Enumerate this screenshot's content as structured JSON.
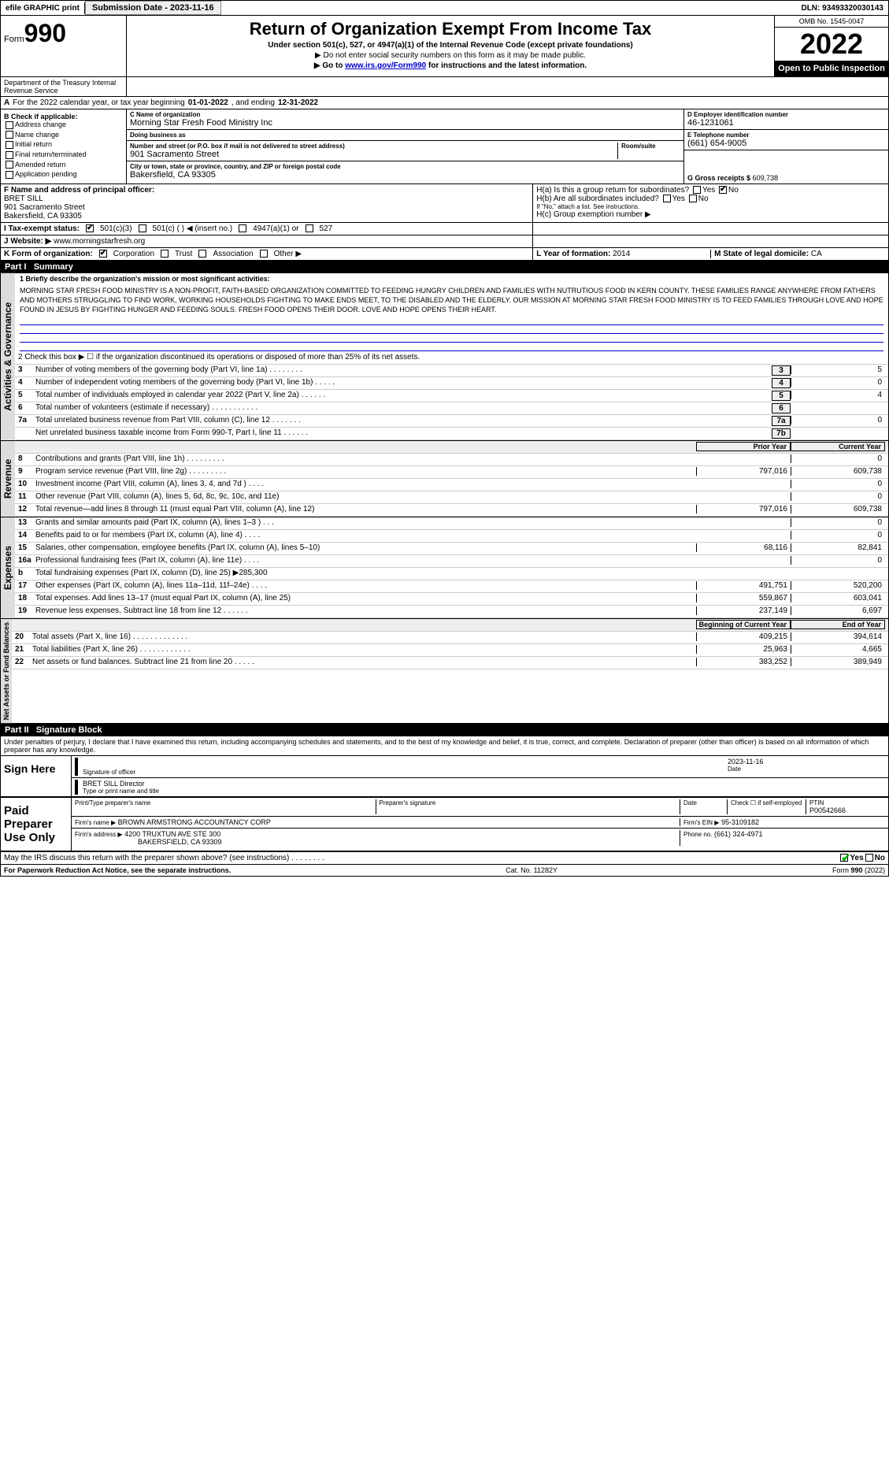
{
  "topbar": {
    "efile": "efile GRAPHIC print",
    "submission_label": "Submission Date - 2023-11-16",
    "dln": "DLN: 93493320030143"
  },
  "header": {
    "form_label": "Form",
    "form_num": "990",
    "title": "Return of Organization Exempt From Income Tax",
    "subtitle": "Under section 501(c), 527, or 4947(a)(1) of the Internal Revenue Code (except private foundations)",
    "note1": "▶ Do not enter social security numbers on this form as it may be made public.",
    "note2": "▶ Go to www.irs.gov/Form990 for instructions and the latest information.",
    "omb": "OMB No. 1545-0047",
    "year": "2022",
    "inspection": "Open to Public Inspection",
    "dept": "Department of the Treasury Internal Revenue Service"
  },
  "row_a": {
    "label_a": "A",
    "text": "For the 2022 calendar year, or tax year beginning",
    "begin": "01-01-2022",
    "mid": ", and ending",
    "end": "12-31-2022"
  },
  "col_b": {
    "label": "B Check if applicable:",
    "opts": [
      "Address change",
      "Name change",
      "Initial return",
      "Final return/terminated",
      "Amended return",
      "Application pending"
    ]
  },
  "col_c": {
    "c_label": "C Name of organization",
    "name": "Morning Star Fresh Food Ministry Inc",
    "dba_label": "Doing business as",
    "dba": "",
    "street_label": "Number and street (or P.O. box if mail is not delivered to street address)",
    "street": "901 Sacramento Street",
    "room_label": "Room/suite",
    "city_label": "City or town, state or province, country, and ZIP or foreign postal code",
    "city": "Bakersfield, CA  93305"
  },
  "col_d": {
    "d_label": "D Employer identification number",
    "ein": "46-1231061",
    "e_label": "E Telephone number",
    "phone": "(661) 654-9005",
    "g_label": "G Gross receipts $",
    "gross": "609,738"
  },
  "row_f": {
    "f_label": "F  Name and address of principal officer:",
    "name": "BRET SILL",
    "street": "901 Sacramento Street",
    "city": "Bakersfield, CA  93305"
  },
  "row_h": {
    "ha": "H(a)  Is this a group return for subordinates?",
    "hb": "H(b)  Are all subordinates included?",
    "hb_note": "If \"No,\" attach a list. See instructions.",
    "hc": "H(c)  Group exemption number ▶"
  },
  "row_i": {
    "label": "I  Tax-exempt status:",
    "opts": [
      "501(c)(3)",
      "501(c) (  )  ◀ (insert no.)",
      "4947(a)(1) or",
      "527"
    ]
  },
  "row_j": {
    "label": "J  Website: ▶",
    "url": "www.morningstarfresh.org"
  },
  "row_k": {
    "label": "K Form of organization:",
    "opts": [
      "Corporation",
      "Trust",
      "Association",
      "Other ▶"
    ]
  },
  "row_l": {
    "label": "L Year of formation:",
    "val": "2014"
  },
  "row_m": {
    "label": "M State of legal domicile:",
    "val": "CA"
  },
  "parts": {
    "p1": "Part I",
    "p1_title": "Summary",
    "p2": "Part II",
    "p2_title": "Signature Block"
  },
  "summary": {
    "l1_label": "1   Briefly describe the organization's mission or most significant activities:",
    "mission": "MORNING STAR FRESH FOOD MINISTRY IS A NON-PROFIT, FAITH-BASED ORGANIZATION COMMITTED TO FEEDING HUNGRY CHILDREN AND FAMILIES WITH NUTRUTIOUS FOOD IN KERN COUNTY. THESE FAMILIES RANGE ANYWHERE FROM FATHERS AND MOTHERS STRUGGLING TO FIND WORK, WORKING HOUSEHOLDS FIGHTING TO MAKE ENDS MEET, TO THE DISABLED AND THE ELDERLY. OUR MISSION AT MORNING STAR FRESH FOOD MINISTRY IS TO FEED FAMILIES THROUGH LOVE AND HOPE FOUND IN JESUS BY FIGHTING HUNGER AND FEEDING SOULS. FRESH FOOD OPENS THEIR DOOR. LOVE AND HOPE OPENS THEIR HEART.",
    "l2": "2   Check this box ▶ ☐ if the organization discontinued its operations or disposed of more than 25% of its net assets.",
    "rows_gov": [
      {
        "n": "3",
        "d": "Number of voting members of the governing body (Part VI, line 1a)  .    .    .    .    .    .    .    .",
        "box": "3",
        "v": "5"
      },
      {
        "n": "4",
        "d": "Number of independent voting members of the governing body (Part VI, line 1b)  .    .    .    .    .",
        "box": "4",
        "v": "0"
      },
      {
        "n": "5",
        "d": "Total number of individuals employed in calendar year 2022 (Part V, line 2a)  .    .    .    .    .    .",
        "box": "5",
        "v": "4"
      },
      {
        "n": "6",
        "d": "Total number of volunteers (estimate if necessary)  .    .    .    .    .    .    .    .    .    .    .",
        "box": "6",
        "v": ""
      },
      {
        "n": "7a",
        "d": "Total unrelated business revenue from Part VIII, column (C), line 12  .    .    .    .    .    .    .",
        "box": "7a",
        "v": "0"
      },
      {
        "n": "",
        "d": "Net unrelated business taxable income from Form 990-T, Part I, line 11  .    .    .    .    .    .",
        "box": "7b",
        "v": ""
      }
    ],
    "hdr_prior": "Prior Year",
    "hdr_current": "Current Year",
    "rows_rev": [
      {
        "n": "8",
        "d": "Contributions and grants (Part VIII, line 1h)  .    .    .    .    .    .    .    .    .",
        "p": "",
        "c": "0"
      },
      {
        "n": "9",
        "d": "Program service revenue (Part VIII, line 2g)  .    .    .    .    .    .    .    .    .",
        "p": "797,016",
        "c": "609,738"
      },
      {
        "n": "10",
        "d": "Investment income (Part VIII, column (A), lines 3, 4, and 7d )  .    .    .    .",
        "p": "",
        "c": "0"
      },
      {
        "n": "11",
        "d": "Other revenue (Part VIII, column (A), lines 5, 6d, 8c, 9c, 10c, and 11e)",
        "p": "",
        "c": "0"
      },
      {
        "n": "12",
        "d": "Total revenue—add lines 8 through 11 (must equal Part VIII, column (A), line 12)",
        "p": "797,016",
        "c": "609,738"
      }
    ],
    "rows_exp": [
      {
        "n": "13",
        "d": "Grants and similar amounts paid (Part IX, column (A), lines 1–3 )  .    .    .",
        "p": "",
        "c": "0"
      },
      {
        "n": "14",
        "d": "Benefits paid to or for members (Part IX, column (A), line 4)  .    .    .    .",
        "p": "",
        "c": "0"
      },
      {
        "n": "15",
        "d": "Salaries, other compensation, employee benefits (Part IX, column (A), lines 5–10)",
        "p": "68,116",
        "c": "82,841"
      },
      {
        "n": "16a",
        "d": "Professional fundraising fees (Part IX, column (A), line 11e)  .    .    .    .",
        "p": "",
        "c": "0"
      },
      {
        "n": "b",
        "d": "Total fundraising expenses (Part IX, column (D), line 25) ▶285,300",
        "p": "",
        "c": "",
        "shade": true
      },
      {
        "n": "17",
        "d": "Other expenses (Part IX, column (A), lines 11a–11d, 11f–24e)  .    .    .    .",
        "p": "491,751",
        "c": "520,200"
      },
      {
        "n": "18",
        "d": "Total expenses. Add lines 13–17 (must equal Part IX, column (A), line 25)",
        "p": "559,867",
        "c": "603,041"
      },
      {
        "n": "19",
        "d": "Revenue less expenses. Subtract line 18 from line 12  .    .    .    .    .    .",
        "p": "237,149",
        "c": "6,697"
      }
    ],
    "hdr_begin": "Beginning of Current Year",
    "hdr_end": "End of Year",
    "rows_net": [
      {
        "n": "20",
        "d": "Total assets (Part X, line 16)  .    .    .    .    .    .    .    .    .    .    .    .    .",
        "p": "409,215",
        "c": "394,614"
      },
      {
        "n": "21",
        "d": "Total liabilities (Part X, line 26)  .    .    .    .    .    .    .    .    .    .    .    .",
        "p": "25,963",
        "c": "4,665"
      },
      {
        "n": "22",
        "d": "Net assets or fund balances. Subtract line 21 from line 20  .    .    .    .    .",
        "p": "383,252",
        "c": "389,949"
      }
    ]
  },
  "vert": {
    "gov": "Activities & Governance",
    "rev": "Revenue",
    "exp": "Expenses",
    "net": "Net Assets or Fund Balances"
  },
  "perjury": "Under penalties of perjury, I declare that I have examined this return, including accompanying schedules and statements, and to the best of my knowledge and belief, it is true, correct, and complete. Declaration of preparer (other than officer) is based on all information of which preparer has any knowledge.",
  "sign": {
    "label": "Sign Here",
    "sig_officer": "Signature of officer",
    "date": "2023-11-16",
    "date_label": "Date",
    "name": "BRET SILL Director",
    "name_label": "Type or print name and title"
  },
  "preparer": {
    "label": "Paid Preparer Use Only",
    "print_label": "Print/Type preparer's name",
    "sig_label": "Preparer's signature",
    "date_label": "Date",
    "check_label": "Check ☐ if self-employed",
    "ptin_label": "PTIN",
    "ptin": "P00542666",
    "firm_name_label": "Firm's name    ▶",
    "firm_name": "BROWN ARMSTRONG ACCOUNTANCY CORP",
    "firm_ein_label": "Firm's EIN ▶",
    "firm_ein": "95-3109182",
    "firm_addr_label": "Firm's address ▶",
    "firm_addr1": "4200 TRUXTUN AVE STE 300",
    "firm_addr2": "BAKERSFIELD, CA  93309",
    "phone_label": "Phone no.",
    "phone": "(661) 324-4971"
  },
  "discuss": {
    "text": "May the IRS discuss this return with the preparer shown above? (see instructions)   .    .    .    .    .    .    .    .",
    "yes": "Yes",
    "no": "No"
  },
  "footer": {
    "left": "For Paperwork Reduction Act Notice, see the separate instructions.",
    "mid": "Cat. No. 11282Y",
    "right": "Form 990 (2022)"
  }
}
